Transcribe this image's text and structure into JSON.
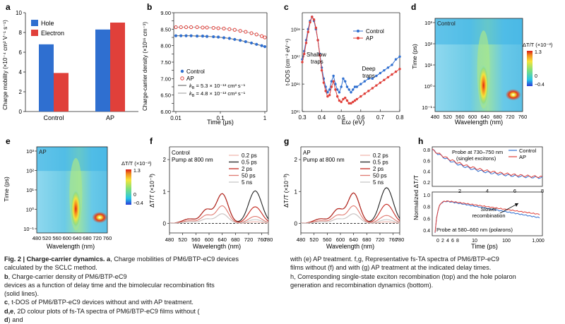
{
  "panels": {
    "a": {
      "letter": "a"
    },
    "b": {
      "letter": "b"
    },
    "c": {
      "letter": "c"
    },
    "d": {
      "letter": "d"
    },
    "e": {
      "letter": "e"
    },
    "f": {
      "letter": "f"
    },
    "g": {
      "letter": "g"
    },
    "h": {
      "letter": "h"
    }
  },
  "chart_data": [
    {
      "id": "a",
      "type": "bar",
      "ylabel": "Charge mobility (×10⁻⁴ cm² V⁻¹ s⁻¹)",
      "categories": [
        "Control",
        "AP"
      ],
      "ylim": [
        0,
        10
      ],
      "yticks": [
        "0",
        "2",
        "4",
        "6",
        "8",
        "10"
      ],
      "series": [
        {
          "name": "Hole",
          "color": "#2f6fd0",
          "values": [
            6.8,
            8.3
          ]
        },
        {
          "name": "Electron",
          "color": "#e0403a",
          "values": [
            3.9,
            9.0
          ]
        }
      ]
    },
    {
      "id": "b",
      "type": "scatter",
      "ylabel": "Charge-carrier density (×10¹⁶ cm⁻³)",
      "xlabel": "Time (μs)",
      "xlim": [
        0.01,
        1
      ],
      "ylim": [
        6.0,
        9.0
      ],
      "xticks": [
        "0.01",
        "0.1",
        "1"
      ],
      "yticks": [
        "6.00",
        "6.25",
        "6.50",
        "6.75",
        "7.00",
        "7.25",
        "7.50",
        "7.75",
        "8.00",
        "8.25",
        "8.50",
        "8.75",
        "9.00"
      ],
      "series": [
        {
          "name": "Control",
          "color": "#2f6fd0",
          "marker": "circle",
          "x": [
            0.01,
            0.013,
            0.017,
            0.022,
            0.03,
            0.04,
            0.05,
            0.07,
            0.09,
            0.12,
            0.16,
            0.21,
            0.28,
            0.37,
            0.5,
            0.65,
            0.85,
            1.0
          ],
          "y": [
            8.3,
            8.3,
            8.3,
            8.3,
            8.29,
            8.29,
            8.28,
            8.27,
            8.26,
            8.24,
            8.22,
            8.19,
            8.16,
            8.12,
            8.08,
            8.04,
            8.0,
            7.97
          ]
        },
        {
          "name": "AP",
          "color": "#e0403a",
          "marker": "circle-open",
          "x": [
            0.01,
            0.013,
            0.017,
            0.022,
            0.03,
            0.04,
            0.05,
            0.07,
            0.09,
            0.12,
            0.16,
            0.21,
            0.28,
            0.37,
            0.5,
            0.65,
            0.85,
            1.0
          ],
          "y": [
            8.56,
            8.56,
            8.56,
            8.56,
            8.56,
            8.55,
            8.55,
            8.54,
            8.53,
            8.52,
            8.5,
            8.48,
            8.45,
            8.42,
            8.38,
            8.34,
            8.29,
            8.25
          ]
        }
      ],
      "fits": [
        {
          "name": "k_B = 5.3 × 10⁻¹³ cm³ s⁻¹",
          "color": "#555555"
        },
        {
          "name": "k_B = 4.8 × 10⁻¹³ cm³ s⁻¹",
          "color": "#999999"
        }
      ],
      "legend_labels": {
        "control": "Control",
        "ap": "AP",
        "fit1": "= 5.3 × 10⁻¹³ cm³ s⁻¹",
        "fit2": "= 4.8 × 10⁻¹³ cm³ s⁻¹",
        "kb": "k",
        "kb_sub": "B"
      }
    },
    {
      "id": "c",
      "type": "line",
      "ylabel": "t-DOS (cm⁻³ eV⁻¹)",
      "xlabel": "Eω (eV)",
      "xlim": [
        0.3,
        0.8
      ],
      "xticks": [
        "0.3",
        "0.4",
        "0.5",
        "0.6",
        "0.7",
        "0.8"
      ],
      "yticks": [
        "10¹⁵",
        "10¹⁶",
        "10¹⁷",
        "10¹⁸"
      ],
      "annotations": [
        "Shallow\ntraps",
        "Deep\ntraps"
      ],
      "series": [
        {
          "name": "Control",
          "color": "#2f6fd0",
          "x": [
            0.3,
            0.31,
            0.32,
            0.33,
            0.34,
            0.35,
            0.36,
            0.37,
            0.38,
            0.39,
            0.4,
            0.41,
            0.42,
            0.43,
            0.44,
            0.45,
            0.46,
            0.47,
            0.48,
            0.49,
            0.5,
            0.51,
            0.52,
            0.53,
            0.54,
            0.55,
            0.56,
            0.57,
            0.58,
            0.6,
            0.62,
            0.64,
            0.66,
            0.68,
            0.7,
            0.72,
            0.74,
            0.76,
            0.78,
            0.8
          ],
          "logy": [
            16.9,
            17.2,
            17.6,
            18.0,
            18.3,
            18.45,
            18.3,
            18.0,
            17.6,
            17.1,
            16.6,
            16.2,
            15.9,
            15.7,
            15.8,
            16.1,
            16.3,
            16.0,
            15.8,
            15.7,
            15.9,
            16.2,
            16.1,
            15.9,
            15.8,
            15.7,
            15.8,
            15.9,
            15.9,
            16.0,
            16.1,
            16.2,
            16.2,
            16.3,
            16.4,
            16.5,
            16.6,
            16.7,
            16.9,
            17.0
          ]
        },
        {
          "name": "AP",
          "color": "#e0403a",
          "x": [
            0.3,
            0.31,
            0.32,
            0.33,
            0.34,
            0.35,
            0.36,
            0.37,
            0.38,
            0.39,
            0.4,
            0.41,
            0.42,
            0.43,
            0.44,
            0.45,
            0.46,
            0.47,
            0.48,
            0.49,
            0.5,
            0.51,
            0.52,
            0.53,
            0.54,
            0.55,
            0.56,
            0.57,
            0.58,
            0.6,
            0.62,
            0.64,
            0.66,
            0.68,
            0.7,
            0.72,
            0.74,
            0.76,
            0.78,
            0.8
          ],
          "logy": [
            16.8,
            17.1,
            17.5,
            17.9,
            18.25,
            18.45,
            18.35,
            18.05,
            17.6,
            17.05,
            16.5,
            16.05,
            15.75,
            15.55,
            15.6,
            15.9,
            16.1,
            15.8,
            15.55,
            15.4,
            15.35,
            15.45,
            15.5,
            15.4,
            15.3,
            15.3,
            15.35,
            15.4,
            15.45,
            15.55,
            15.65,
            15.75,
            15.85,
            15.95,
            16.05,
            16.15,
            16.25,
            16.35,
            16.45,
            16.55
          ]
        }
      ]
    },
    {
      "id": "d",
      "type": "heatmap",
      "label": "Control",
      "xlabel": "Wavelength (nm)",
      "ylabel": "Time (ps)",
      "xticks": [
        "480",
        "520",
        "560",
        "600",
        "640",
        "680",
        "720",
        "760"
      ],
      "yticks": [
        "10⁻¹",
        "10⁰",
        "10¹",
        "10²",
        "10³"
      ],
      "colorbar": {
        "title": "ΔT/T (×10⁻³)",
        "max": "1.3",
        "zero": "0",
        "min": "−0.4"
      }
    },
    {
      "id": "e",
      "type": "heatmap",
      "label": "AP",
      "xlabel": "Wavelength (nm)",
      "ylabel": "Time (ps)",
      "xticks": [
        "480",
        "520",
        "560",
        "600",
        "640",
        "680",
        "720",
        "760"
      ],
      "yticks": [
        "10⁻¹",
        "10⁰",
        "10¹",
        "10²",
        "10³"
      ],
      "colorbar": {
        "title": "ΔT/T (×10⁻³)",
        "max": "1.3",
        "zero": "0",
        "min": "−0.4"
      }
    },
    {
      "id": "f",
      "type": "line",
      "annotation": [
        "Control",
        "Pump at 800 nm"
      ],
      "xlabel": "Wavelength (nm)",
      "ylabel": "ΔT/T (×10⁻³)",
      "xlim": [
        480,
        780
      ],
      "ylim": [
        -0.3,
        2.4
      ],
      "xticks": [
        "480",
        "520",
        "560",
        "600",
        "640",
        "680",
        "720",
        "760",
        "780"
      ],
      "yticks": [
        "0",
        "1",
        "2"
      ],
      "series": [
        {
          "name": "0.2 ps",
          "color": "#f2b8b0",
          "peak1": 0.3,
          "peak2": 0.05
        },
        {
          "name": "0.5 ps",
          "color": "#222222",
          "peak1": 0.93,
          "peak2": 1.02
        },
        {
          "name": "2 ps",
          "color": "#c4281f",
          "peak1": 0.93,
          "peak2": 0.52
        },
        {
          "name": "50 ps",
          "color": "#e07a70",
          "peak1": 0.55,
          "peak2": 0.22
        },
        {
          "name": "5 ns",
          "color": "#c9c9c9",
          "peak1": 0.3,
          "peak2": 0.12
        }
      ]
    },
    {
      "id": "g",
      "type": "line",
      "annotation": [
        "AP",
        "Pump at 800 nm"
      ],
      "xlabel": "Wavelength (nm)",
      "ylabel": "ΔT/T (×10⁻³)",
      "xlim": [
        480,
        780
      ],
      "ylim": [
        -0.3,
        2.4
      ],
      "xticks": [
        "480",
        "520",
        "560",
        "600",
        "640",
        "680",
        "720",
        "760",
        "780"
      ],
      "yticks": [
        "0",
        "1",
        "2"
      ],
      "series": [
        {
          "name": "0.2 ps",
          "color": "#f2b8b0",
          "peak1": 0.3,
          "peak2": 0.05
        },
        {
          "name": "0.5 ps",
          "color": "#222222",
          "peak1": 0.95,
          "peak2": 1.12
        },
        {
          "name": "2 ps",
          "color": "#c4281f",
          "peak1": 0.95,
          "peak2": 0.6
        },
        {
          "name": "50 ps",
          "color": "#e07a70",
          "peak1": 0.55,
          "peak2": 0.25
        },
        {
          "name": "5 ns",
          "color": "#c9c9c9",
          "peak1": 0.3,
          "peak2": 0.12
        }
      ]
    },
    {
      "id": "h",
      "type": "line",
      "ylabel": "Normalized ΔT/T",
      "xlabel": "Time (ps)",
      "top": {
        "note": [
          "Probe at 730–750 nm",
          "(singlet excitons)"
        ],
        "xticks": [
          "2",
          "4",
          "6",
          "8"
        ],
        "yticks": [
          "0.2",
          "0.4",
          "0.6",
          "0.8"
        ],
        "series": [
          {
            "name": "Control",
            "color": "#2f6fd0"
          },
          {
            "name": "AP",
            "color": "#e0403a"
          }
        ]
      },
      "bottom": {
        "note": "Probe at 580–660 nm (polarons)",
        "annotation": [
          "Slower",
          "recombination"
        ],
        "xticks": [
          "0",
          "2",
          "4",
          "6",
          "8",
          "10",
          "100",
          "1,000"
        ],
        "yticks": [
          "0.4",
          "0.6",
          "0.8",
          "1.0"
        ]
      }
    }
  ],
  "caption": {
    "left": [
      {
        "bold": "Fig. 2 | Charge-carrier dynamics. a",
        "text": ", Charge mobilities of PM6/BTP-eC9 devices"
      },
      {
        "text": "calculated by the SCLC method. "
      },
      {
        "bold": "b",
        "text": ", Charge-carrier density of PM6/BTP-eC9"
      },
      {
        "text": "devices as a function of delay time and the bimolecular recombination fits"
      },
      {
        "text": "(solid lines). "
      },
      {
        "bold": "c",
        "text": ", t-DOS of PM6/BTP-eC9 devices without and with AP treatment."
      },
      {
        "bold": "d,e",
        "text": ", 2D colour plots of fs-TA spectra of PM6/BTP-eC9 films without ("
      },
      {
        "bold": "d",
        "text": ") and"
      }
    ],
    "right": [
      {
        "text": "with (e) AP treatment. f,g, Representative fs-TA spectra of PM6/BTP-eC9"
      },
      {
        "text": "films without (f) and with (g) AP treatment at the indicated delay times."
      },
      {
        "text": "h, Corresponding single-state exciton recombination (top) and the hole polaron"
      },
      {
        "text": "generation and recombination dynamics (bottom)."
      }
    ]
  }
}
